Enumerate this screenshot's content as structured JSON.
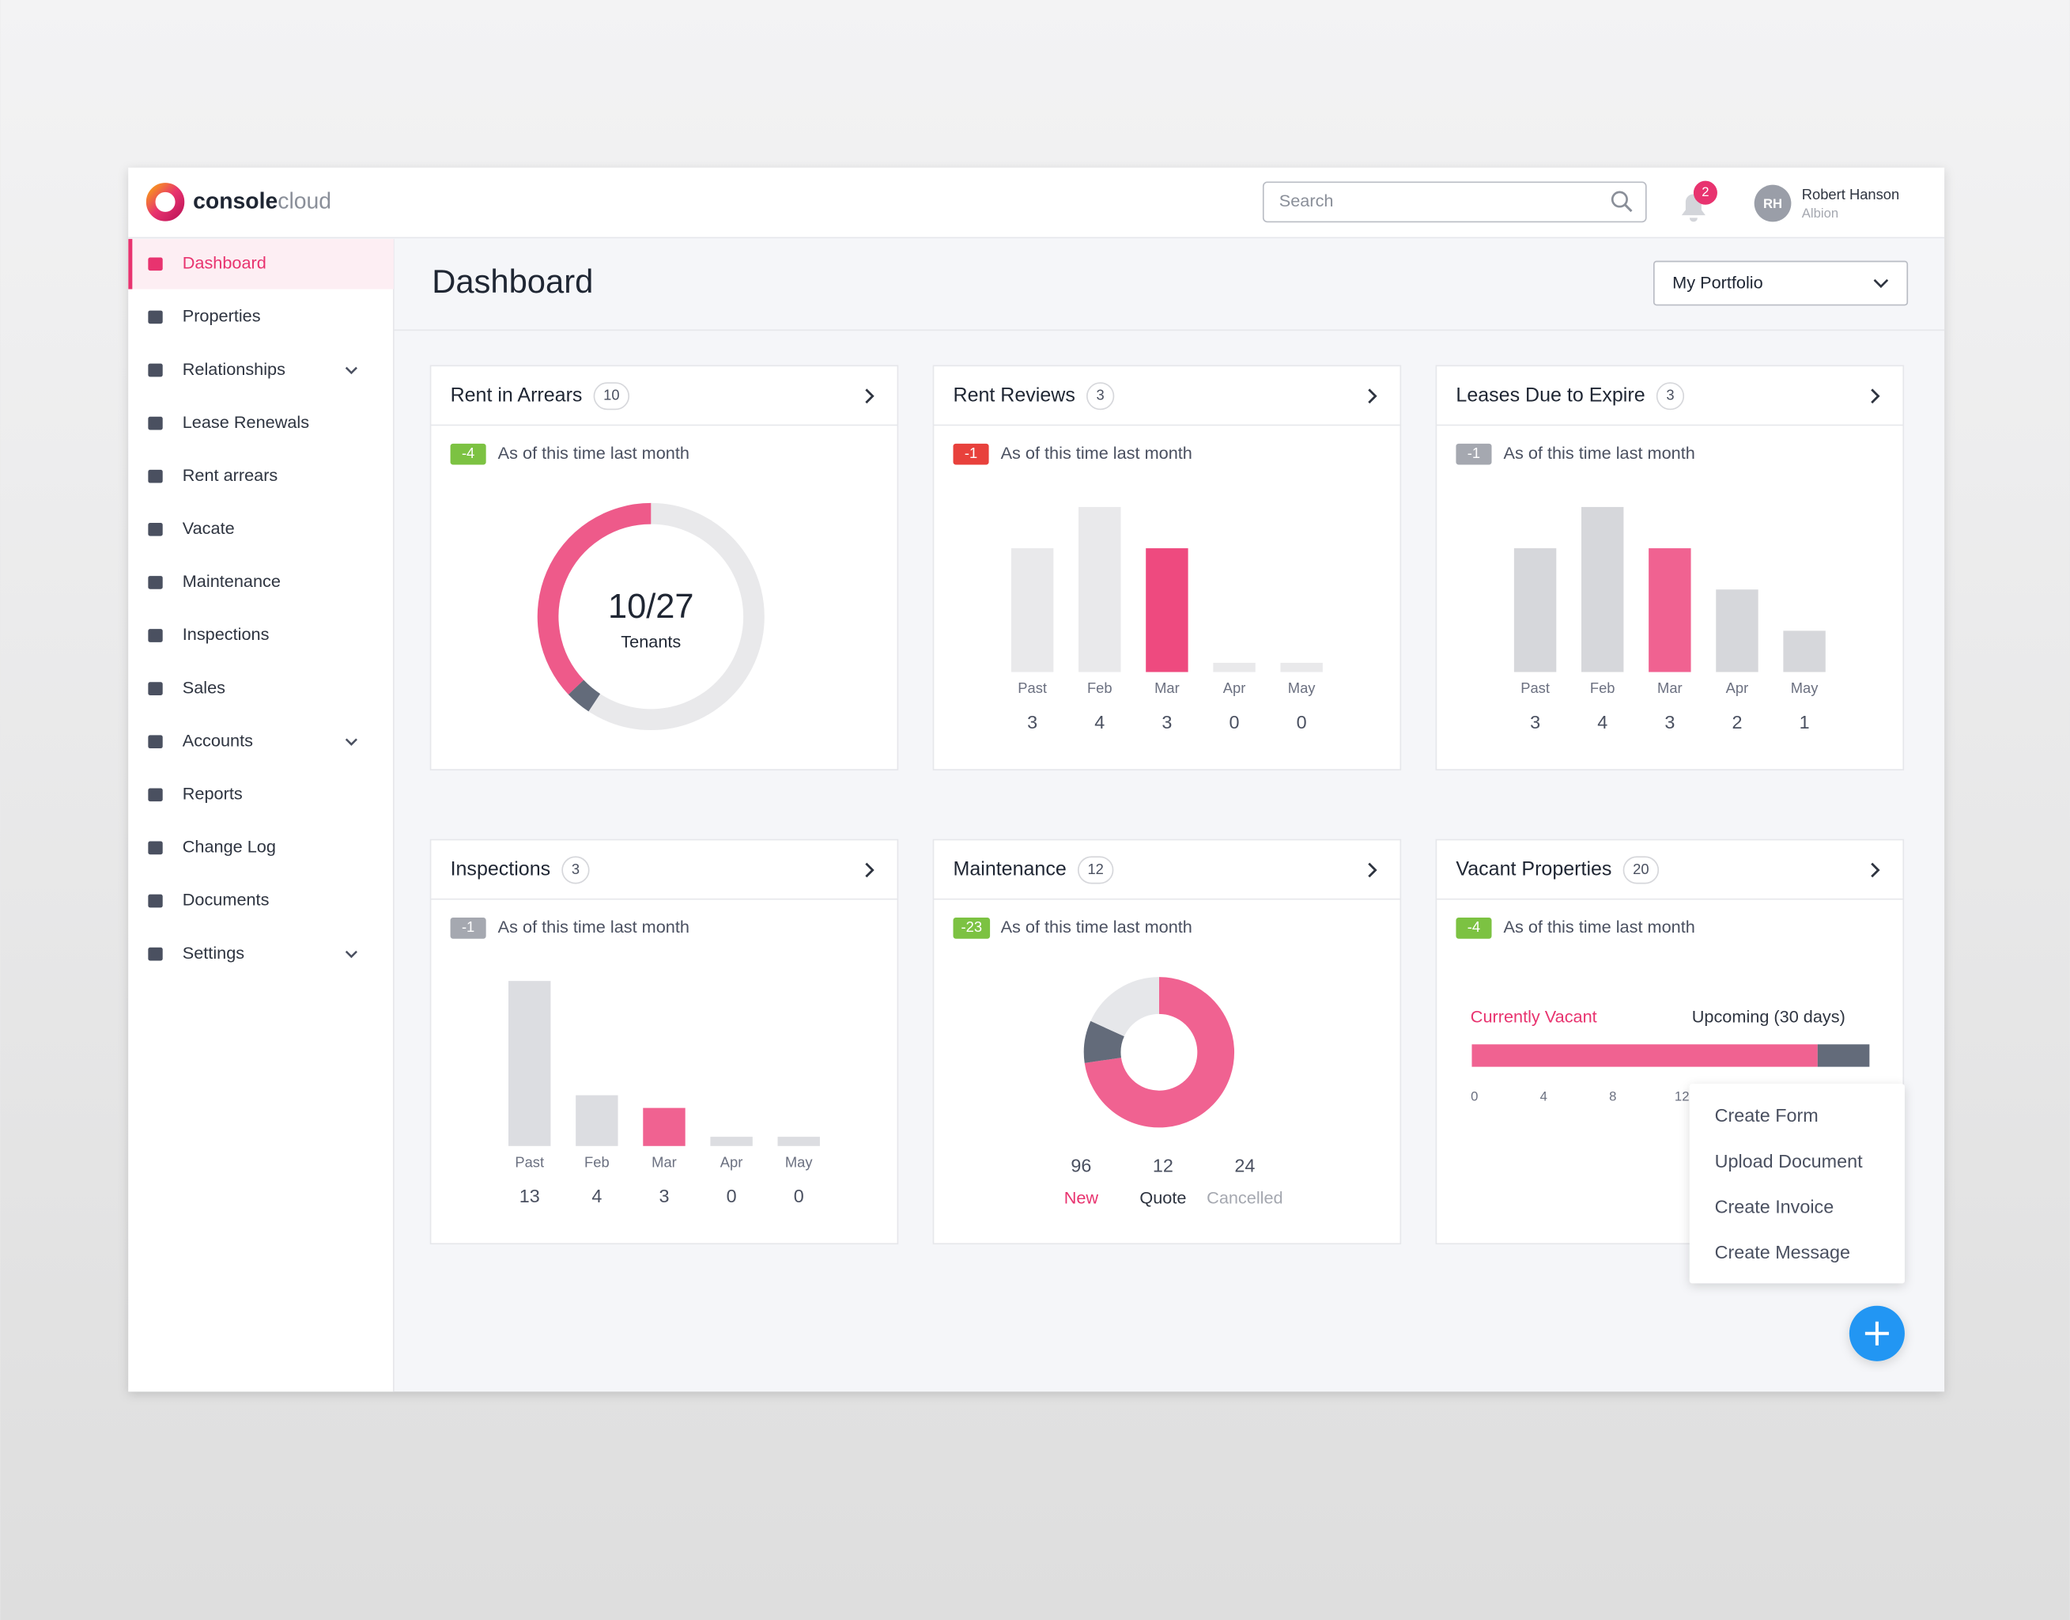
{
  "brand": {
    "name_bold": "console",
    "name_light": "cloud"
  },
  "header": {
    "search_placeholder": "Search",
    "notifications": 2,
    "user_initials": "RH",
    "user_name": "Robert Hanson",
    "user_org": "Albion"
  },
  "sidebar": [
    {
      "label": "Dashboard",
      "active": true
    },
    {
      "label": "Properties"
    },
    {
      "label": "Relationships",
      "expandable": true
    },
    {
      "label": "Lease Renewals"
    },
    {
      "label": "Rent arrears"
    },
    {
      "label": "Vacate"
    },
    {
      "label": "Maintenance"
    },
    {
      "label": "Inspections"
    },
    {
      "label": "Sales"
    },
    {
      "label": "Accounts",
      "expandable": true
    },
    {
      "label": "Reports"
    },
    {
      "label": "Change Log"
    },
    {
      "label": "Documents"
    },
    {
      "label": "Settings",
      "expandable": true
    }
  ],
  "page": {
    "title": "Dashboard",
    "portfolio": "My Portfolio"
  },
  "cards": [
    {
      "title": "Rent in Arrears",
      "count": 10,
      "change": -4,
      "change_color": "#7cc242",
      "change_note": "As of this time last month",
      "chart": {
        "type": "ring",
        "ratio_label": "10/27",
        "caption": "Tenants",
        "current": 10,
        "total": 27,
        "secondary": 1,
        "color": "#ee5a8a",
        "secondary_color": "#636b7a",
        "base_color": "#e9e9eb"
      }
    },
    {
      "title": "Rent Reviews",
      "count": 3,
      "change": -1,
      "change_color": "#e8413c",
      "change_note": "As of this time last month",
      "chart": {
        "type": "bar",
        "categories": [
          "Past",
          "Feb",
          "Mar",
          "Apr",
          "May"
        ],
        "values": [
          3,
          4,
          3,
          0,
          0
        ],
        "highlight_index": 2,
        "color": "#ee4a7f",
        "base_color": "#e9e9eb"
      }
    },
    {
      "title": "Leases Due to Expire",
      "count": 3,
      "change": -1,
      "change_color": "#a5a8b0",
      "change_note": "As of this time last month",
      "chart": {
        "type": "bar",
        "categories": [
          "Past",
          "Feb",
          "Mar",
          "Apr",
          "May"
        ],
        "values": [
          3,
          4,
          3,
          2,
          1
        ],
        "highlight_index": 2,
        "color": "#f06291",
        "base_color": "#d6d7db"
      }
    },
    {
      "title": "Inspections",
      "count": 3,
      "change": -1,
      "change_color": "#a5a8b0",
      "change_note": "As of this time last month",
      "chart": {
        "type": "bar",
        "categories": [
          "Past",
          "Feb",
          "Mar",
          "Apr",
          "May"
        ],
        "values": [
          13,
          4,
          3,
          0,
          0
        ],
        "highlight_index": 2,
        "color": "#f06291",
        "base_color": "#dcdde1"
      }
    },
    {
      "title": "Maintenance",
      "count": 12,
      "change": -23,
      "change_color": "#7cc242",
      "change_note": "As of this time last month",
      "chart": {
        "type": "donut",
        "segments": [
          {
            "name": "New",
            "value": 96,
            "color": "#f06291",
            "label_color": "#e8336f"
          },
          {
            "name": "Quote",
            "value": 12,
            "color": "#636b7a",
            "label_color": "#2e3440"
          },
          {
            "name": "Cancelled",
            "value": 24,
            "color": "#e6e7ea",
            "label_color": "#a5a8b0"
          }
        ]
      }
    },
    {
      "title": "Vacant Properties",
      "count": 20,
      "change": -4,
      "change_color": "#7cc242",
      "change_note": "As of this time last month",
      "chart": {
        "type": "stacked_bar",
        "xlim": [
          0,
          24
        ],
        "xticks": [
          0,
          4,
          8,
          12
        ],
        "series": [
          {
            "name": "Currently Vacant",
            "value": 20,
            "color": "#f06291",
            "label_color": "#e8336f"
          },
          {
            "name": "Upcoming (30 days)",
            "value": 3,
            "color": "#636b7a",
            "label_color": "#2e3440"
          }
        ]
      }
    }
  ],
  "menu": [
    "Create Form",
    "Upload Document",
    "Create Invoice",
    "Create Message"
  ]
}
